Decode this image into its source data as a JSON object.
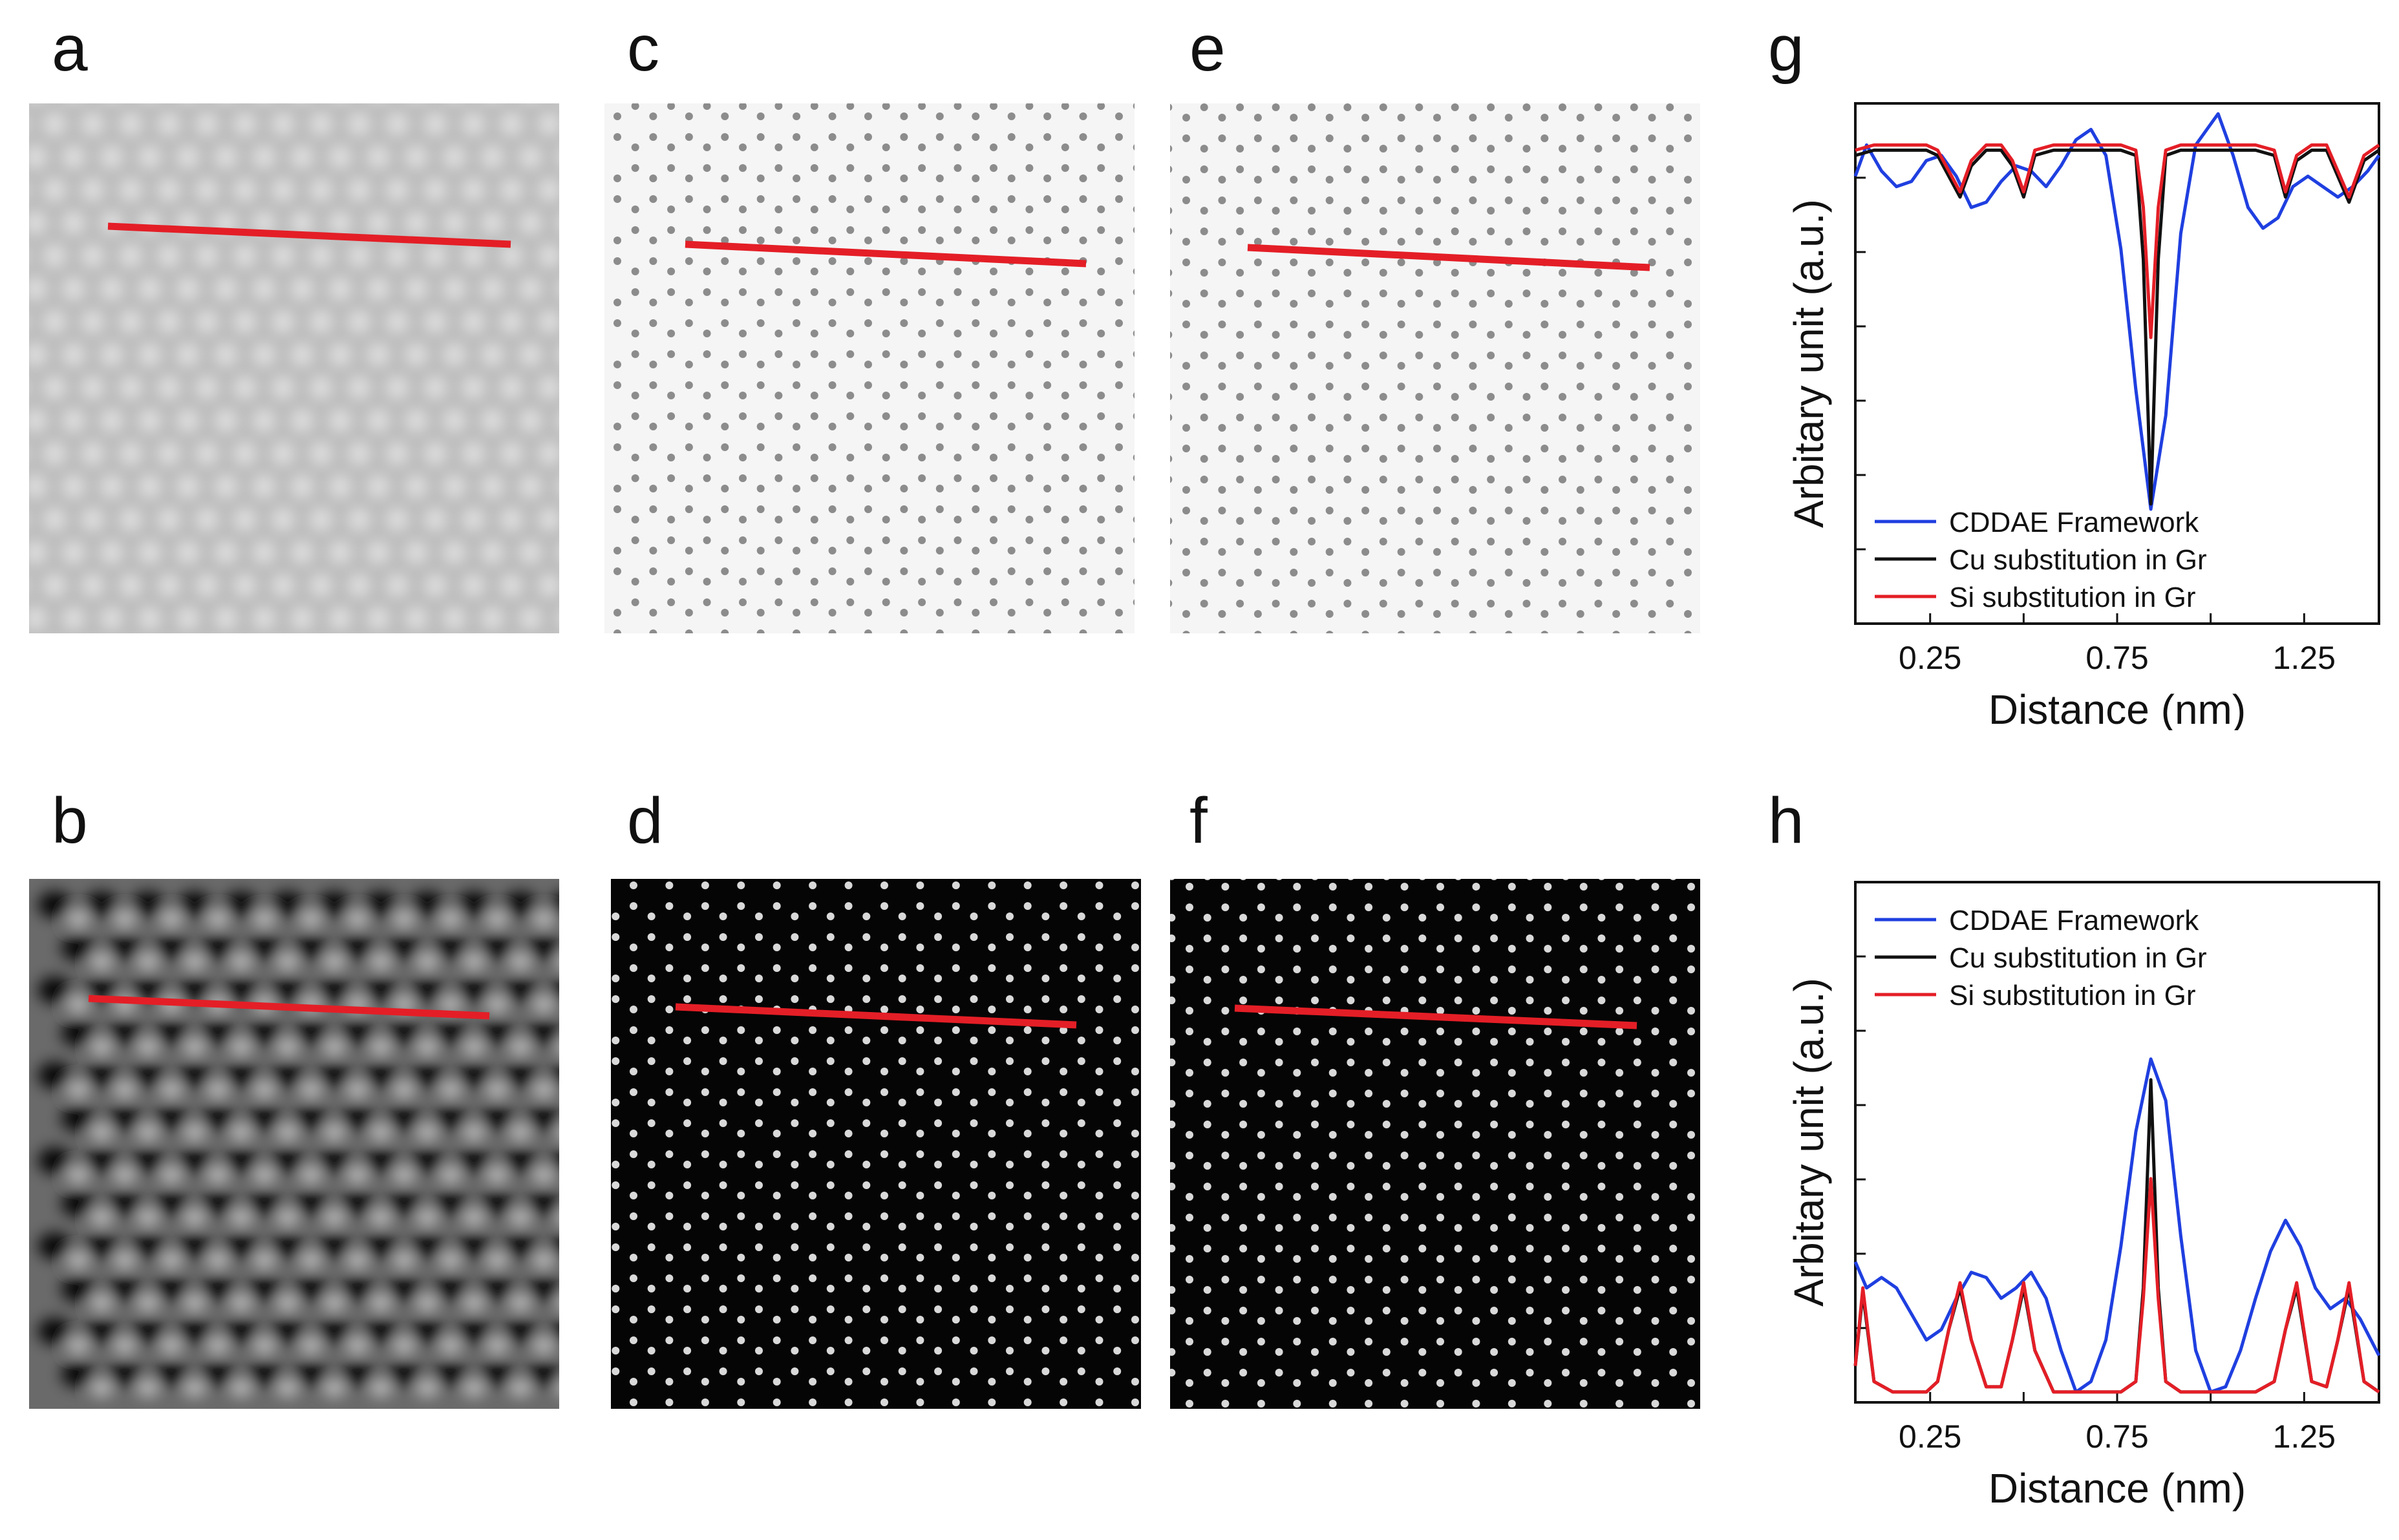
{
  "panel_labels": {
    "a": "a",
    "b": "b",
    "c": "c",
    "d": "d",
    "e": "e",
    "f": "f",
    "g": "g",
    "h": "h"
  },
  "colors": {
    "profile_line": "#e41e26",
    "cddae": "#1f3fe0",
    "cu": "#111111",
    "si": "#e41e26"
  },
  "chart_data": [
    {
      "type": "line",
      "panel": "g",
      "xlabel": "Distance (nm)",
      "ylabel": "Arbitary unit (a.u.)",
      "xlim": [
        0.05,
        1.45
      ],
      "ylim": [
        0,
        1
      ],
      "xticks": [
        0.25,
        0.75,
        1.25
      ],
      "xtick_labels": [
        "0.25",
        "0.75",
        "1.25"
      ],
      "legend_position": "bottom-left",
      "series": [
        {
          "name": "CDDAE Framework",
          "color": "#1f3fe0",
          "x": [
            0.05,
            0.08,
            0.12,
            0.16,
            0.2,
            0.24,
            0.28,
            0.32,
            0.36,
            0.4,
            0.44,
            0.48,
            0.52,
            0.56,
            0.6,
            0.64,
            0.68,
            0.72,
            0.76,
            0.8,
            0.84,
            0.88,
            0.92,
            0.96,
            1.0,
            1.02,
            1.06,
            1.1,
            1.14,
            1.18,
            1.22,
            1.26,
            1.3,
            1.34,
            1.38,
            1.42,
            1.45
          ],
          "y": [
            0.86,
            0.92,
            0.87,
            0.84,
            0.85,
            0.89,
            0.9,
            0.86,
            0.8,
            0.81,
            0.85,
            0.88,
            0.87,
            0.84,
            0.88,
            0.93,
            0.95,
            0.9,
            0.72,
            0.45,
            0.22,
            0.4,
            0.75,
            0.92,
            0.96,
            0.98,
            0.9,
            0.8,
            0.76,
            0.78,
            0.84,
            0.86,
            0.84,
            0.82,
            0.84,
            0.87,
            0.9
          ]
        },
        {
          "name": "Cu substitution in Gr",
          "color": "#111111",
          "x": [
            0.05,
            0.1,
            0.15,
            0.2,
            0.24,
            0.27,
            0.3,
            0.33,
            0.36,
            0.4,
            0.44,
            0.47,
            0.5,
            0.53,
            0.58,
            0.64,
            0.7,
            0.76,
            0.8,
            0.82,
            0.84,
            0.86,
            0.88,
            0.92,
            0.98,
            1.05,
            1.12,
            1.17,
            1.2,
            1.23,
            1.27,
            1.31,
            1.34,
            1.37,
            1.41,
            1.45
          ],
          "y": [
            0.9,
            0.91,
            0.91,
            0.91,
            0.91,
            0.9,
            0.86,
            0.82,
            0.88,
            0.91,
            0.91,
            0.88,
            0.82,
            0.9,
            0.91,
            0.91,
            0.91,
            0.91,
            0.9,
            0.7,
            0.23,
            0.7,
            0.9,
            0.91,
            0.91,
            0.91,
            0.91,
            0.9,
            0.82,
            0.89,
            0.91,
            0.91,
            0.86,
            0.81,
            0.89,
            0.91
          ]
        },
        {
          "name": "Si substitution in Gr",
          "color": "#e41e26",
          "x": [
            0.05,
            0.1,
            0.15,
            0.2,
            0.24,
            0.27,
            0.3,
            0.33,
            0.36,
            0.4,
            0.44,
            0.47,
            0.5,
            0.53,
            0.58,
            0.64,
            0.7,
            0.76,
            0.8,
            0.82,
            0.84,
            0.86,
            0.88,
            0.92,
            0.98,
            1.05,
            1.12,
            1.17,
            1.2,
            1.23,
            1.27,
            1.31,
            1.34,
            1.37,
            1.41,
            1.45
          ],
          "y": [
            0.91,
            0.92,
            0.92,
            0.92,
            0.92,
            0.91,
            0.87,
            0.83,
            0.89,
            0.92,
            0.92,
            0.89,
            0.83,
            0.91,
            0.92,
            0.92,
            0.92,
            0.92,
            0.91,
            0.8,
            0.55,
            0.8,
            0.91,
            0.92,
            0.92,
            0.92,
            0.92,
            0.91,
            0.83,
            0.9,
            0.92,
            0.92,
            0.87,
            0.82,
            0.9,
            0.92
          ]
        }
      ]
    },
    {
      "type": "line",
      "panel": "h",
      "xlabel": "Distance (nm)",
      "ylabel": "Arbitary unit (a.u.)",
      "xlim": [
        0.05,
        1.45
      ],
      "ylim": [
        0,
        1
      ],
      "xticks": [
        0.25,
        0.75,
        1.25
      ],
      "xtick_labels": [
        "0.25",
        "0.75",
        "1.25"
      ],
      "legend_position": "top-left",
      "series": [
        {
          "name": "CDDAE Framework",
          "color": "#1f3fe0",
          "x": [
            0.05,
            0.08,
            0.12,
            0.16,
            0.2,
            0.24,
            0.28,
            0.32,
            0.36,
            0.4,
            0.44,
            0.48,
            0.52,
            0.56,
            0.6,
            0.64,
            0.68,
            0.72,
            0.76,
            0.8,
            0.84,
            0.88,
            0.92,
            0.96,
            1.0,
            1.04,
            1.08,
            1.12,
            1.16,
            1.2,
            1.24,
            1.28,
            1.32,
            1.36,
            1.4,
            1.45
          ],
          "y": [
            0.27,
            0.22,
            0.24,
            0.22,
            0.17,
            0.12,
            0.14,
            0.2,
            0.25,
            0.24,
            0.2,
            0.22,
            0.25,
            0.2,
            0.1,
            0.02,
            0.04,
            0.12,
            0.3,
            0.52,
            0.66,
            0.58,
            0.32,
            0.1,
            0.02,
            0.03,
            0.1,
            0.2,
            0.29,
            0.35,
            0.3,
            0.22,
            0.18,
            0.2,
            0.16,
            0.09
          ]
        },
        {
          "name": "Cu substitution in Gr",
          "color": "#111111",
          "x": [
            0.05,
            0.07,
            0.1,
            0.15,
            0.2,
            0.24,
            0.27,
            0.3,
            0.33,
            0.36,
            0.4,
            0.44,
            0.47,
            0.5,
            0.53,
            0.58,
            0.64,
            0.7,
            0.76,
            0.8,
            0.82,
            0.84,
            0.86,
            0.88,
            0.92,
            0.98,
            1.05,
            1.12,
            1.17,
            1.2,
            1.23,
            1.27,
            1.31,
            1.34,
            1.37,
            1.41,
            1.45
          ],
          "y": [
            0.07,
            0.21,
            0.04,
            0.02,
            0.02,
            0.02,
            0.04,
            0.14,
            0.22,
            0.12,
            0.03,
            0.03,
            0.12,
            0.22,
            0.1,
            0.02,
            0.02,
            0.02,
            0.02,
            0.04,
            0.22,
            0.62,
            0.22,
            0.04,
            0.02,
            0.02,
            0.02,
            0.02,
            0.04,
            0.14,
            0.22,
            0.04,
            0.03,
            0.12,
            0.22,
            0.04,
            0.02
          ]
        },
        {
          "name": "Si substitution in Gr",
          "color": "#e41e26",
          "x": [
            0.05,
            0.07,
            0.1,
            0.15,
            0.2,
            0.24,
            0.27,
            0.3,
            0.33,
            0.36,
            0.4,
            0.44,
            0.47,
            0.5,
            0.53,
            0.58,
            0.64,
            0.7,
            0.76,
            0.8,
            0.82,
            0.84,
            0.86,
            0.88,
            0.92,
            0.98,
            1.05,
            1.12,
            1.17,
            1.2,
            1.23,
            1.27,
            1.31,
            1.34,
            1.37,
            1.41,
            1.45
          ],
          "y": [
            0.07,
            0.22,
            0.04,
            0.02,
            0.02,
            0.02,
            0.04,
            0.14,
            0.23,
            0.12,
            0.03,
            0.03,
            0.12,
            0.23,
            0.1,
            0.02,
            0.02,
            0.02,
            0.02,
            0.04,
            0.2,
            0.43,
            0.2,
            0.04,
            0.02,
            0.02,
            0.02,
            0.02,
            0.04,
            0.14,
            0.23,
            0.04,
            0.03,
            0.12,
            0.23,
            0.04,
            0.02
          ]
        }
      ]
    }
  ]
}
